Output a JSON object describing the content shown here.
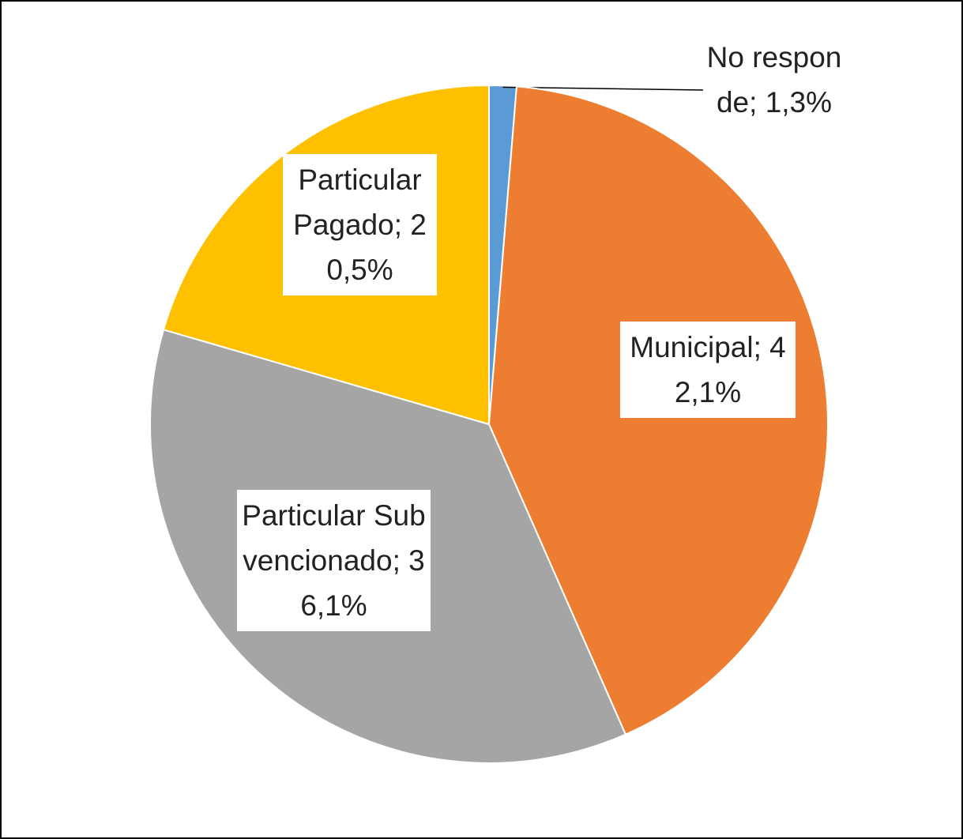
{
  "chart_data": {
    "type": "pie",
    "categories": [
      "No responde",
      "Municipal",
      "Particular Subvencionado",
      "Particular Pagado"
    ],
    "values": [
      1.3,
      42.1,
      36.1,
      20.5
    ],
    "value_labels": [
      "1,3%",
      "42,1%",
      "36,1%",
      "20,5%"
    ],
    "label_separator": ";",
    "colors": [
      "#5b9bd5",
      "#ed7d31",
      "#a5a5a5",
      "#ffc000"
    ]
  }
}
